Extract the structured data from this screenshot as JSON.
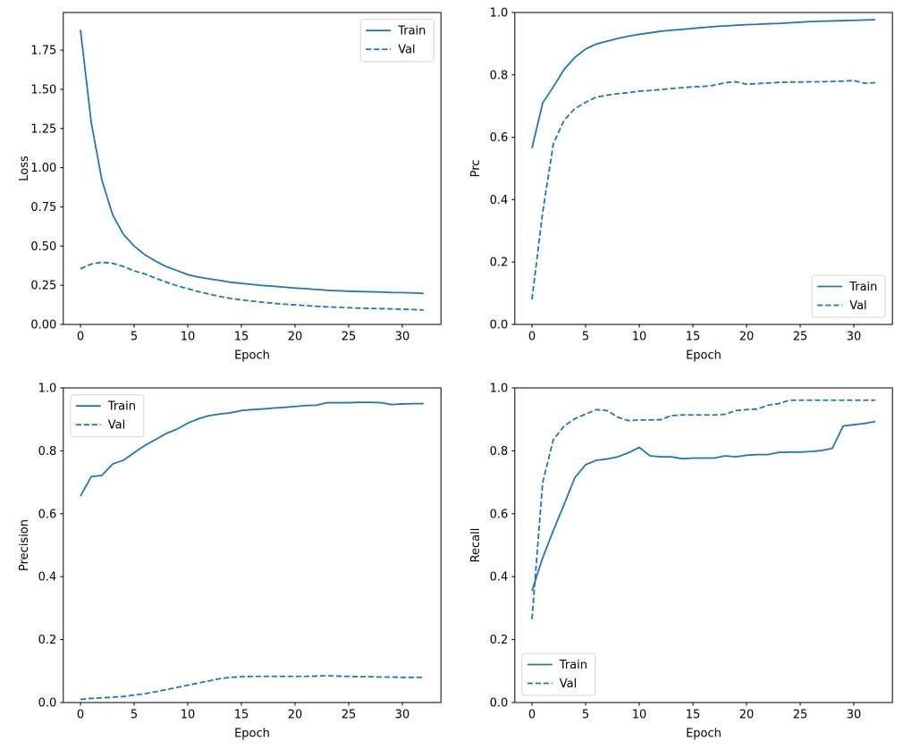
{
  "figure": {
    "background": "#ffffff",
    "line_color": "#1f77b4",
    "text_color": "#000000",
    "spine_color": "#000000",
    "legend_border": "#d4d4d4",
    "legend_background": "#ffffff"
  },
  "epochs": [
    0,
    1,
    2,
    3,
    4,
    5,
    6,
    7,
    8,
    9,
    10,
    11,
    12,
    13,
    14,
    15,
    16,
    17,
    18,
    19,
    20,
    21,
    22,
    23,
    24,
    25,
    26,
    27,
    28,
    29,
    30,
    31,
    32
  ],
  "chart_data": [
    {
      "id": "loss",
      "type": "line",
      "title": "",
      "xlabel": "Epoch",
      "ylabel": "Loss",
      "xlim": [
        -1.6,
        33.6
      ],
      "ylim": [
        0,
        1.99
      ],
      "grid": false,
      "xticks": {
        "values": [
          0,
          5,
          10,
          15,
          20,
          25,
          30
        ],
        "labels": [
          "0",
          "5",
          "10",
          "15",
          "20",
          "25",
          "30"
        ]
      },
      "yticks": {
        "values": [
          0,
          0.25,
          0.5,
          0.75,
          1.0,
          1.25,
          1.5,
          1.75
        ],
        "labels": [
          "0.00",
          "0.25",
          "0.50",
          "0.75",
          "1.00",
          "1.25",
          "1.50",
          "1.75"
        ]
      },
      "legend": {
        "loc": "upper right",
        "entries": [
          "Train",
          "Val"
        ]
      },
      "series": [
        {
          "name": "Train",
          "style": "solid",
          "values": [
            1.88,
            1.29,
            0.92,
            0.7,
            0.575,
            0.5,
            0.445,
            0.404,
            0.369,
            0.344,
            0.318,
            0.302,
            0.291,
            0.281,
            0.269,
            0.262,
            0.255,
            0.248,
            0.244,
            0.238,
            0.232,
            0.228,
            0.223,
            0.218,
            0.215,
            0.212,
            0.21,
            0.208,
            0.207,
            0.204,
            0.203,
            0.201,
            0.198
          ]
        },
        {
          "name": "Val",
          "style": "dashed",
          "values": [
            0.355,
            0.385,
            0.397,
            0.39,
            0.37,
            0.342,
            0.322,
            0.295,
            0.27,
            0.247,
            0.228,
            0.209,
            0.194,
            0.178,
            0.166,
            0.157,
            0.149,
            0.141,
            0.135,
            0.129,
            0.125,
            0.12,
            0.116,
            0.112,
            0.11,
            0.107,
            0.104,
            0.102,
            0.101,
            0.099,
            0.097,
            0.095,
            0.092
          ]
        }
      ]
    },
    {
      "id": "prc",
      "type": "line",
      "title": "",
      "xlabel": "Epoch",
      "ylabel": "Prc",
      "xlim": [
        -1.6,
        33.6
      ],
      "ylim": [
        0,
        1.0
      ],
      "grid": false,
      "xticks": {
        "values": [
          0,
          5,
          10,
          15,
          20,
          25,
          30
        ],
        "labels": [
          "0",
          "5",
          "10",
          "15",
          "20",
          "25",
          "30"
        ]
      },
      "yticks": {
        "values": [
          0,
          0.2,
          0.4,
          0.6,
          0.8,
          1.0
        ],
        "labels": [
          "0.0",
          "0.2",
          "0.4",
          "0.6",
          "0.8",
          "1.0"
        ]
      },
      "legend": {
        "loc": "lower right",
        "entries": [
          "Train",
          "Val"
        ]
      },
      "series": [
        {
          "name": "Train",
          "style": "solid",
          "values": [
            0.565,
            0.71,
            0.762,
            0.818,
            0.856,
            0.883,
            0.899,
            0.908,
            0.917,
            0.924,
            0.93,
            0.935,
            0.94,
            0.943,
            0.946,
            0.949,
            0.952,
            0.955,
            0.957,
            0.959,
            0.961,
            0.962,
            0.964,
            0.965,
            0.967,
            0.969,
            0.971,
            0.972,
            0.973,
            0.974,
            0.975,
            0.976,
            0.977
          ]
        },
        {
          "name": "Val",
          "style": "dashed",
          "values": [
            0.08,
            0.36,
            0.58,
            0.655,
            0.692,
            0.712,
            0.729,
            0.735,
            0.74,
            0.743,
            0.748,
            0.75,
            0.753,
            0.756,
            0.759,
            0.762,
            0.763,
            0.767,
            0.775,
            0.778,
            0.77,
            0.772,
            0.774,
            0.776,
            0.777,
            0.777,
            0.778,
            0.778,
            0.779,
            0.78,
            0.782,
            0.773,
            0.775
          ]
        }
      ]
    },
    {
      "id": "precision",
      "type": "line",
      "title": "",
      "xlabel": "Epoch",
      "ylabel": "Precision",
      "xlim": [
        -1.6,
        33.6
      ],
      "ylim": [
        0,
        1.0
      ],
      "grid": false,
      "xticks": {
        "values": [
          0,
          5,
          10,
          15,
          20,
          25,
          30
        ],
        "labels": [
          "0",
          "5",
          "10",
          "15",
          "20",
          "25",
          "30"
        ]
      },
      "yticks": {
        "values": [
          0,
          0.2,
          0.4,
          0.6,
          0.8,
          1.0
        ],
        "labels": [
          "0.0",
          "0.2",
          "0.4",
          "0.6",
          "0.8",
          "1.0"
        ]
      },
      "legend": {
        "loc": "upper left",
        "entries": [
          "Train",
          "Val"
        ]
      },
      "series": [
        {
          "name": "Train",
          "style": "solid",
          "values": [
            0.656,
            0.718,
            0.722,
            0.758,
            0.77,
            0.794,
            0.817,
            0.836,
            0.855,
            0.869,
            0.888,
            0.902,
            0.912,
            0.917,
            0.921,
            0.928,
            0.931,
            0.933,
            0.936,
            0.938,
            0.941,
            0.944,
            0.945,
            0.953,
            0.953,
            0.953,
            0.954,
            0.954,
            0.953,
            0.947,
            0.949,
            0.95,
            0.95
          ]
        },
        {
          "name": "Val",
          "style": "dashed",
          "values": [
            0.01,
            0.013,
            0.015,
            0.017,
            0.019,
            0.024,
            0.028,
            0.034,
            0.041,
            0.048,
            0.055,
            0.062,
            0.069,
            0.076,
            0.08,
            0.082,
            0.083,
            0.083,
            0.083,
            0.083,
            0.083,
            0.083,
            0.084,
            0.085,
            0.084,
            0.083,
            0.082,
            0.082,
            0.081,
            0.081,
            0.08,
            0.08,
            0.08
          ]
        }
      ]
    },
    {
      "id": "recall",
      "type": "line",
      "title": "",
      "xlabel": "Epoch",
      "ylabel": "Recall",
      "xlim": [
        -1.6,
        33.6
      ],
      "ylim": [
        0,
        1.0
      ],
      "grid": false,
      "xticks": {
        "values": [
          0,
          5,
          10,
          15,
          20,
          25,
          30
        ],
        "labels": [
          "0",
          "5",
          "10",
          "15",
          "20",
          "25",
          "30"
        ]
      },
      "yticks": {
        "values": [
          0,
          0.2,
          0.4,
          0.6,
          0.8,
          1.0
        ],
        "labels": [
          "0.0",
          "0.2",
          "0.4",
          "0.6",
          "0.8",
          "1.0"
        ]
      },
      "legend": {
        "loc": "lower left",
        "entries": [
          "Train",
          "Val"
        ]
      },
      "series": [
        {
          "name": "Train",
          "style": "solid",
          "values": [
            0.355,
            0.46,
            0.547,
            0.63,
            0.715,
            0.756,
            0.77,
            0.774,
            0.781,
            0.794,
            0.811,
            0.784,
            0.781,
            0.781,
            0.775,
            0.777,
            0.777,
            0.777,
            0.784,
            0.781,
            0.786,
            0.788,
            0.788,
            0.795,
            0.796,
            0.796,
            0.798,
            0.801,
            0.808,
            0.879,
            0.883,
            0.887,
            0.893
          ]
        },
        {
          "name": "Val",
          "style": "dashed",
          "values": [
            0.265,
            0.7,
            0.836,
            0.879,
            0.902,
            0.917,
            0.931,
            0.928,
            0.907,
            0.896,
            0.898,
            0.898,
            0.899,
            0.912,
            0.914,
            0.914,
            0.914,
            0.914,
            0.916,
            0.928,
            0.931,
            0.933,
            0.945,
            0.95,
            0.961,
            0.961,
            0.961,
            0.961,
            0.961,
            0.961,
            0.961,
            0.961,
            0.961
          ]
        }
      ]
    }
  ]
}
